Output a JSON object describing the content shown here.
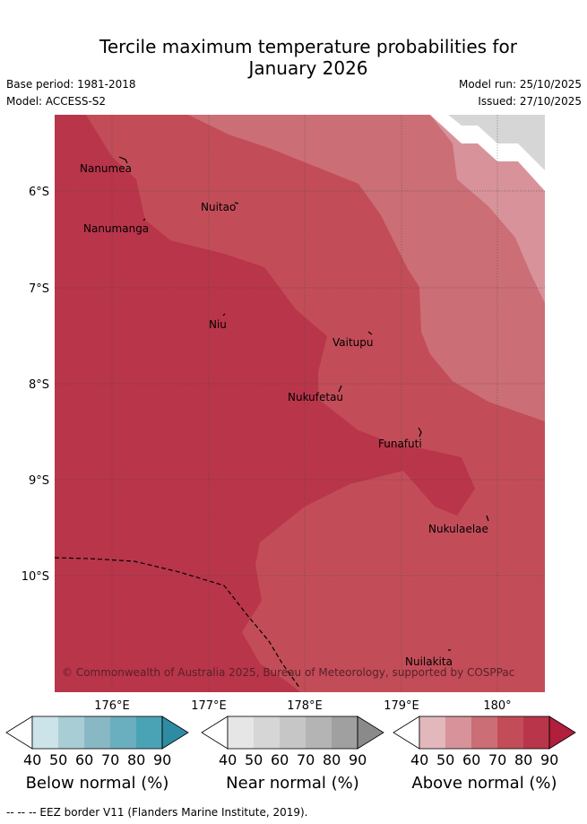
{
  "title_line1": "Tercile maximum temperature probabilities for",
  "title_line2": "January 2026",
  "base_period": "Base period: 1981-2018",
  "model": "Model: ACCESS-S2",
  "model_run": "Model run: 25/10/2025",
  "issued": "Issued: 27/10/2025",
  "places": [
    "Nanumea",
    "Nuitao",
    "Nanumanga",
    "Niu",
    "Vaitupu",
    "Nukufetau",
    "Funafuti",
    "Nukulaelae",
    "Nuilakita"
  ],
  "lat_labels": [
    "6°S",
    "7°S",
    "8°S",
    "9°S",
    "10°S"
  ],
  "lon_labels": [
    "176°E",
    "177°E",
    "178°E",
    "179°E",
    "180°"
  ],
  "copyright": "© Commonwealth of Australia 2025, Bureau of Meteorology, supported by COSPPac",
  "legends": [
    {
      "label": "Below normal (%)",
      "ticks": [
        "40",
        "50",
        "60",
        "70",
        "80",
        "90"
      ],
      "colors": [
        "#ffffff",
        "#cce3ea",
        "#a9cdd4",
        "#89b8c5",
        "#6aafbf",
        "#4aa3b5",
        "#2e8ba3"
      ]
    },
    {
      "label": "Near normal (%)",
      "ticks": [
        "40",
        "50",
        "60",
        "70",
        "80",
        "90"
      ],
      "colors": [
        "#ffffff",
        "#e6e6e6",
        "#d6d6d6",
        "#c6c6c6",
        "#b4b4b4",
        "#a0a0a0",
        "#8a8a8a"
      ]
    },
    {
      "label": "Above normal (%)",
      "ticks": [
        "40",
        "50",
        "60",
        "70",
        "80",
        "90"
      ],
      "colors": [
        "#ffffff",
        "#e3b8bd",
        "#d8939a",
        "#cc6e76",
        "#c24d58",
        "#b9354a",
        "#b01f3c"
      ]
    }
  ],
  "footer": "-- -- -- EEZ border V11 (Flanders Marine Institute, 2019)."
}
